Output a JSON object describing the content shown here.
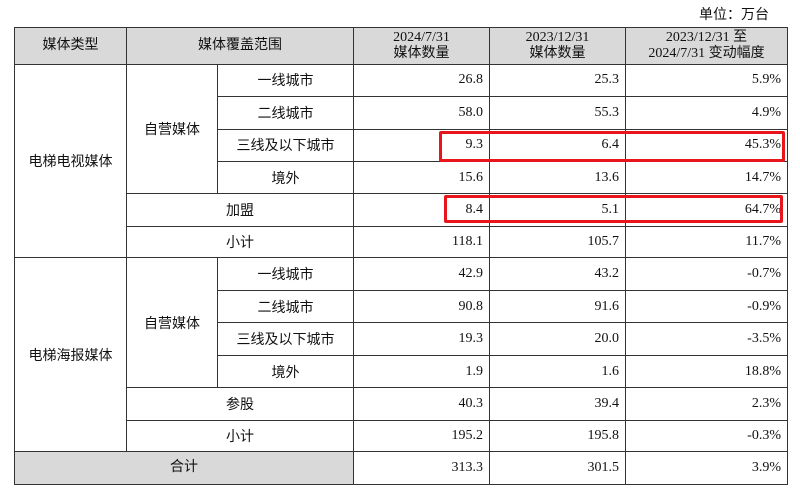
{
  "unit_label": "单位：万台",
  "header": {
    "col1": "媒体类型",
    "col2": "媒体覆盖范围",
    "col3": [
      "2024/7/31",
      "媒体数量"
    ],
    "col4": [
      "2023/12/31",
      "媒体数量"
    ],
    "col5": [
      "2023/12/31 至",
      "2024/7/31 变动幅度"
    ]
  },
  "sections": [
    {
      "type": "电梯电视媒体",
      "group": "自营媒体",
      "rows": [
        {
          "label": "一线城市",
          "v2024": "26.8",
          "v2023": "25.3",
          "change": "5.9%"
        },
        {
          "label": "二线城市",
          "v2024": "58.0",
          "v2023": "55.3",
          "change": "4.9%"
        },
        {
          "label": "三线及以下城市",
          "v2024": "9.3",
          "v2023": "6.4",
          "change": "45.3%"
        },
        {
          "label": "境外",
          "v2024": "15.6",
          "v2023": "13.6",
          "change": "14.7%"
        }
      ],
      "extra": {
        "label": "加盟",
        "v2024": "8.4",
        "v2023": "5.1",
        "change": "64.7%"
      },
      "subtotal": {
        "label": "小计",
        "v2024": "118.1",
        "v2023": "105.7",
        "change": "11.7%"
      }
    },
    {
      "type": "电梯海报媒体",
      "group": "自营媒体",
      "rows": [
        {
          "label": "一线城市",
          "v2024": "42.9",
          "v2023": "43.2",
          "change": "-0.7%"
        },
        {
          "label": "二线城市",
          "v2024": "90.8",
          "v2023": "91.6",
          "change": "-0.9%"
        },
        {
          "label": "三线及以下城市",
          "v2024": "19.3",
          "v2023": "20.0",
          "change": "-3.5%"
        },
        {
          "label": "境外",
          "v2024": "1.9",
          "v2023": "1.6",
          "change": "18.8%"
        }
      ],
      "extra": {
        "label": "参股",
        "v2024": "40.3",
        "v2023": "39.4",
        "change": "2.3%"
      },
      "subtotal": {
        "label": "小计",
        "v2024": "195.2",
        "v2023": "195.8",
        "change": "-0.3%"
      }
    }
  ],
  "total": {
    "label": "合计",
    "v2024": "313.3",
    "v2023": "301.5",
    "change": "3.9%"
  },
  "highlight_color": "#e8151b"
}
